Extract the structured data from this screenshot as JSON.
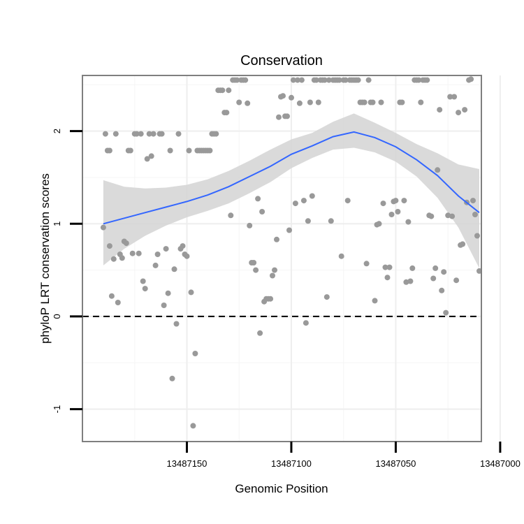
{
  "chart_data": {
    "type": "scatter",
    "title": "Conservation",
    "xlabel": "Genomic Position",
    "ylabel": "phyloP LRT conservation scores",
    "x_reversed": true,
    "xlim": [
      13487009,
      13487200
    ],
    "ylim": [
      -1.35,
      2.6
    ],
    "x_ticks": [
      13487150,
      13487100,
      13487050,
      13487000
    ],
    "x_tick_labels": [
      "13487150",
      "13487100",
      "13487050",
      "13487000"
    ],
    "y_ticks": [
      -1,
      0,
      1,
      2
    ],
    "y_tick_labels": [
      "-1",
      "0",
      "1",
      "2"
    ],
    "reference_line": {
      "y": 0,
      "style": "dashed",
      "color": "#000000"
    },
    "grid": true,
    "colors": {
      "points": "#999999",
      "smooth": "#3366ff",
      "band": "#d3d3d3",
      "frame": "#7f7f7f"
    },
    "series": [
      {
        "kind": "points",
        "points": [
          [
            13487190,
            0.96
          ],
          [
            13487189,
            1.97
          ],
          [
            13487188,
            1.79
          ],
          [
            13487187,
            1.79
          ],
          [
            13487187,
            0.76
          ],
          [
            13487186,
            0.22
          ],
          [
            13487185,
            0.62
          ],
          [
            13487184,
            1.97
          ],
          [
            13487183,
            0.15
          ],
          [
            13487182,
            0.67
          ],
          [
            13487181,
            0.63
          ],
          [
            13487180,
            0.81
          ],
          [
            13487179,
            0.79
          ],
          [
            13487178,
            1.79
          ],
          [
            13487177,
            1.79
          ],
          [
            13487176,
            0.68
          ],
          [
            13487175,
            1.97
          ],
          [
            13487174,
            1.97
          ],
          [
            13487173,
            0.68
          ],
          [
            13487172,
            1.97
          ],
          [
            13487171,
            0.38
          ],
          [
            13487170,
            0.3
          ],
          [
            13487169,
            1.7
          ],
          [
            13487168,
            1.97
          ],
          [
            13487167,
            1.73
          ],
          [
            13487166,
            1.97
          ],
          [
            13487165,
            0.55
          ],
          [
            13487164,
            0.67
          ],
          [
            13487163,
            1.97
          ],
          [
            13487162,
            1.97
          ],
          [
            13487161,
            0.12
          ],
          [
            13487160,
            0.73
          ],
          [
            13487159,
            0.25
          ],
          [
            13487158,
            1.79
          ],
          [
            13487157,
            -0.67
          ],
          [
            13487156,
            0.51
          ],
          [
            13487155,
            -0.08
          ],
          [
            13487154,
            1.97
          ],
          [
            13487153,
            0.73
          ],
          [
            13487152,
            0.76
          ],
          [
            13487151,
            0.67
          ],
          [
            13487150,
            0.65
          ],
          [
            13487149,
            1.79
          ],
          [
            13487148,
            0.26
          ],
          [
            13487147,
            -1.18
          ],
          [
            13487146,
            -0.4
          ],
          [
            13487145,
            1.79
          ],
          [
            13487144,
            1.79
          ],
          [
            13487143,
            1.79
          ],
          [
            13487142,
            1.79
          ],
          [
            13487141,
            1.79
          ],
          [
            13487140,
            1.79
          ],
          [
            13487139,
            1.79
          ],
          [
            13487138,
            1.97
          ],
          [
            13487137,
            1.97
          ],
          [
            13487136,
            1.97
          ],
          [
            13487135,
            2.44
          ],
          [
            13487134,
            2.44
          ],
          [
            13487133,
            2.44
          ],
          [
            13487132,
            2.2
          ],
          [
            13487131,
            2.2
          ],
          [
            13487130,
            2.44
          ],
          [
            13487129,
            1.09
          ],
          [
            13487128,
            2.55
          ],
          [
            13487127,
            2.55
          ],
          [
            13487126,
            2.55
          ],
          [
            13487125,
            2.31
          ],
          [
            13487124,
            2.55
          ],
          [
            13487123,
            2.55
          ],
          [
            13487122,
            2.55
          ],
          [
            13487121,
            2.3
          ],
          [
            13487120,
            0.98
          ],
          [
            13487119,
            0.58
          ],
          [
            13487118,
            0.58
          ],
          [
            13487117,
            0.5
          ],
          [
            13487116,
            1.27
          ],
          [
            13487115,
            -0.18
          ],
          [
            13487114,
            1.13
          ],
          [
            13487113,
            0.16
          ],
          [
            13487112,
            0.19
          ],
          [
            13487111,
            0.19
          ],
          [
            13487110,
            0.19
          ],
          [
            13487109,
            0.44
          ],
          [
            13487108,
            0.5
          ],
          [
            13487107,
            0.83
          ],
          [
            13487106,
            2.15
          ],
          [
            13487105,
            2.37
          ],
          [
            13487104,
            2.38
          ],
          [
            13487103,
            2.16
          ],
          [
            13487102,
            2.16
          ],
          [
            13487101,
            0.93
          ],
          [
            13487100,
            2.36
          ],
          [
            13487099,
            2.55
          ],
          [
            13487098,
            1.22
          ],
          [
            13487097,
            2.55
          ],
          [
            13487096,
            2.3
          ],
          [
            13487095,
            2.55
          ],
          [
            13487094,
            1.25
          ],
          [
            13487093,
            -0.07
          ],
          [
            13487092,
            1.03
          ],
          [
            13487091,
            2.31
          ],
          [
            13487090,
            1.3
          ],
          [
            13487089,
            2.55
          ],
          [
            13487088,
            2.55
          ],
          [
            13487087,
            2.31
          ],
          [
            13487086,
            2.55
          ],
          [
            13487085,
            2.55
          ],
          [
            13487084,
            2.55
          ],
          [
            13487083,
            0.21
          ],
          [
            13487082,
            2.55
          ],
          [
            13487081,
            1.03
          ],
          [
            13487080,
            2.55
          ],
          [
            13487079,
            2.55
          ],
          [
            13487078,
            2.55
          ],
          [
            13487077,
            2.55
          ],
          [
            13487076,
            0.65
          ],
          [
            13487075,
            2.55
          ],
          [
            13487074,
            2.55
          ],
          [
            13487073,
            1.25
          ],
          [
            13487072,
            2.55
          ],
          [
            13487071,
            2.55
          ],
          [
            13487070,
            2.55
          ],
          [
            13487069,
            2.55
          ],
          [
            13487068,
            2.55
          ],
          [
            13487067,
            2.31
          ],
          [
            13487066,
            2.31
          ],
          [
            13487065,
            2.31
          ],
          [
            13487064,
            0.57
          ],
          [
            13487063,
            2.55
          ],
          [
            13487062,
            2.31
          ],
          [
            13487061,
            2.31
          ],
          [
            13487060,
            0.17
          ],
          [
            13487059,
            0.99
          ],
          [
            13487058,
            1.0
          ],
          [
            13487057,
            2.31
          ],
          [
            13487056,
            1.22
          ],
          [
            13487055,
            0.53
          ],
          [
            13487054,
            0.42
          ],
          [
            13487053,
            0.53
          ],
          [
            13487052,
            1.1
          ],
          [
            13487051,
            1.24
          ],
          [
            13487050,
            1.25
          ],
          [
            13487049,
            1.13
          ],
          [
            13487048,
            2.31
          ],
          [
            13487047,
            2.31
          ],
          [
            13487046,
            1.25
          ],
          [
            13487045,
            0.37
          ],
          [
            13487044,
            1.02
          ],
          [
            13487043,
            0.38
          ],
          [
            13487042,
            0.52
          ],
          [
            13487041,
            2.55
          ],
          [
            13487040,
            2.55
          ],
          [
            13487039,
            2.55
          ],
          [
            13487038,
            2.31
          ],
          [
            13487037,
            2.55
          ],
          [
            13487036,
            2.55
          ],
          [
            13487035,
            2.55
          ],
          [
            13487034,
            1.09
          ],
          [
            13487033,
            1.08
          ],
          [
            13487032,
            0.41
          ],
          [
            13487031,
            0.52
          ],
          [
            13487030,
            1.58
          ],
          [
            13487029,
            2.23
          ],
          [
            13487028,
            0.28
          ],
          [
            13487027,
            0.48
          ],
          [
            13487026,
            0.04
          ],
          [
            13487025,
            1.09
          ],
          [
            13487024,
            2.37
          ],
          [
            13487023,
            1.08
          ],
          [
            13487022,
            2.37
          ],
          [
            13487021,
            0.39
          ],
          [
            13487020,
            2.2
          ],
          [
            13487019,
            0.77
          ],
          [
            13487018,
            0.78
          ],
          [
            13487017,
            2.23
          ],
          [
            13487016,
            1.23
          ],
          [
            13487015,
            2.55
          ],
          [
            13487014,
            2.56
          ],
          [
            13487013,
            1.25
          ],
          [
            13487012,
            1.1
          ],
          [
            13487011,
            0.87
          ],
          [
            13487010,
            0.49
          ]
        ]
      },
      {
        "kind": "smooth",
        "x": [
          13487190,
          13487180,
          13487170,
          13487160,
          13487150,
          13487140,
          13487130,
          13487120,
          13487110,
          13487100,
          13487090,
          13487080,
          13487070,
          13487060,
          13487050,
          13487040,
          13487030,
          13487020,
          13487010
        ],
        "y": [
          1.0,
          1.06,
          1.12,
          1.18,
          1.24,
          1.31,
          1.4,
          1.51,
          1.62,
          1.75,
          1.84,
          1.94,
          1.99,
          1.93,
          1.83,
          1.69,
          1.52,
          1.3,
          1.12
        ],
        "lower": [
          0.55,
          0.73,
          0.87,
          0.98,
          1.07,
          1.14,
          1.22,
          1.33,
          1.45,
          1.6,
          1.71,
          1.8,
          1.82,
          1.77,
          1.67,
          1.51,
          1.28,
          0.96,
          0.52
        ],
        "upper": [
          1.47,
          1.4,
          1.38,
          1.39,
          1.42,
          1.48,
          1.57,
          1.68,
          1.8,
          1.91,
          1.98,
          2.1,
          2.19,
          2.09,
          1.98,
          1.86,
          1.76,
          1.64,
          1.59
        ]
      }
    ]
  }
}
